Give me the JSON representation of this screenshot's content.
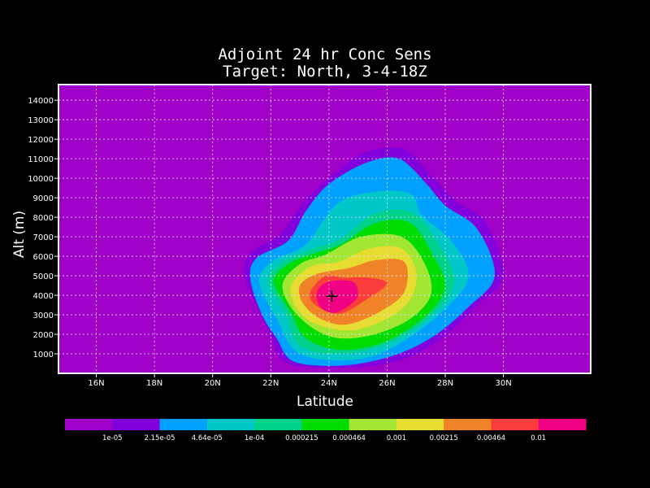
{
  "chart_data": {
    "type": "contour",
    "title": "Adjoint 24 hr Conc Sens",
    "subtitle": "Target: North, 3-4-18Z",
    "xlabel": "Latitude",
    "ylabel": "Alt (m)",
    "xlim": [
      14.7,
      33.0
    ],
    "ylim": [
      0,
      14800
    ],
    "x_ticks": [
      {
        "value": 16,
        "label": "16N"
      },
      {
        "value": 18,
        "label": "18N"
      },
      {
        "value": 20,
        "label": "20N"
      },
      {
        "value": 22,
        "label": "22N"
      },
      {
        "value": 24,
        "label": "24N"
      },
      {
        "value": 26,
        "label": "26N"
      },
      {
        "value": 28,
        "label": "28N"
      },
      {
        "value": 30,
        "label": "30N"
      }
    ],
    "y_ticks": [
      {
        "value": 1000,
        "label": "1000"
      },
      {
        "value": 2000,
        "label": "2000"
      },
      {
        "value": 3000,
        "label": "3000"
      },
      {
        "value": 4000,
        "label": "4000"
      },
      {
        "value": 5000,
        "label": "5000"
      },
      {
        "value": 6000,
        "label": "6000"
      },
      {
        "value": 7000,
        "label": "7000"
      },
      {
        "value": 8000,
        "label": "8000"
      },
      {
        "value": 9000,
        "label": "9000"
      },
      {
        "value": 10000,
        "label": "10000"
      },
      {
        "value": 11000,
        "label": "11000"
      },
      {
        "value": 12000,
        "label": "12000"
      },
      {
        "value": 13000,
        "label": "13000"
      },
      {
        "value": 14000,
        "label": "14000"
      }
    ],
    "grid": true,
    "background_color": "#a000c8",
    "marker": {
      "symbol": "+",
      "x": 24.1,
      "y": 3950
    },
    "levels": [
      {
        "color": "#a000c8",
        "label": "1e-05"
      },
      {
        "color": "#8200dc",
        "label": "2.15e-05"
      },
      {
        "color": "#1e3cff",
        "label": ""
      },
      {
        "color": "#00a0ff",
        "label": "4.64e-05"
      },
      {
        "color": "#00c8c8",
        "label": "1e-04"
      },
      {
        "color": "#00d28c",
        "label": "0.000215"
      },
      {
        "color": "#00dc00",
        "label": "0.000464"
      },
      {
        "color": "#a0e632",
        "label": "0.001"
      },
      {
        "color": "#e6dc32",
        "label": "0.00215"
      },
      {
        "color": "#f08228",
        "label": "0.00464"
      },
      {
        "color": "#fa3c3c",
        "label": "0.01"
      },
      {
        "color": "#f00082",
        "label": ""
      }
    ],
    "colorbar": [
      {
        "color": "#a000c8"
      },
      {
        "color": "#8200dc",
        "label": "1e-05"
      },
      {
        "color": "#00a0ff",
        "label": "2.15e-05"
      },
      {
        "color": "#00c8c8",
        "label": "4.64e-05"
      },
      {
        "color": "#00d28c",
        "label": "1e-04"
      },
      {
        "color": "#00dc00",
        "label": "0.000215"
      },
      {
        "color": "#a0e632",
        "label": "0.000464"
      },
      {
        "color": "#e6dc32",
        "label": "0.001"
      },
      {
        "color": "#f08228",
        "label": "0.00215"
      },
      {
        "color": "#fa3c3c",
        "label": "0.00464"
      },
      {
        "color": "#f00082",
        "label": "0.01"
      }
    ],
    "contours": [
      {
        "color": "#8200dc",
        "points": [
          [
            21.1,
            5000
          ],
          [
            21.3,
            6200
          ],
          [
            22.3,
            7100
          ],
          [
            23.1,
            8700
          ],
          [
            24.0,
            10000
          ],
          [
            25.2,
            11300
          ],
          [
            26.6,
            11500
          ],
          [
            27.6,
            10000
          ],
          [
            28.4,
            8800
          ],
          [
            29.4,
            7700
          ],
          [
            30.0,
            5000
          ],
          [
            29.1,
            3500
          ],
          [
            27.9,
            1800
          ],
          [
            26.5,
            700
          ],
          [
            24.8,
            300
          ],
          [
            22.6,
            500
          ],
          [
            22.0,
            1900
          ],
          [
            21.6,
            3200
          ]
        ]
      },
      {
        "color": "#00a0ff",
        "points": [
          [
            21.3,
            4800
          ],
          [
            21.5,
            5900
          ],
          [
            22.6,
            6800
          ],
          [
            23.2,
            8300
          ],
          [
            24.0,
            9700
          ],
          [
            25.3,
            10800
          ],
          [
            26.4,
            11000
          ],
          [
            27.3,
            9800
          ],
          [
            28.0,
            8600
          ],
          [
            29.1,
            7400
          ],
          [
            29.7,
            5000
          ],
          [
            28.8,
            3400
          ],
          [
            27.6,
            1900
          ],
          [
            26.2,
            900
          ],
          [
            24.5,
            400
          ],
          [
            22.8,
            600
          ],
          [
            22.2,
            1800
          ],
          [
            21.7,
            3000
          ]
        ]
      },
      {
        "color": "#00c8c8",
        "points": [
          [
            21.6,
            4700
          ],
          [
            22.1,
            5800
          ],
          [
            23.2,
            6600
          ],
          [
            24.3,
            8700
          ],
          [
            25.6,
            9300
          ],
          [
            26.8,
            9200
          ],
          [
            27.2,
            8100
          ],
          [
            28.2,
            6800
          ],
          [
            28.8,
            5000
          ],
          [
            28.0,
            3300
          ],
          [
            26.4,
            1500
          ],
          [
            24.9,
            700
          ],
          [
            23.0,
            1000
          ],
          [
            22.2,
            2800
          ]
        ]
      },
      {
        "color": "#00d28c",
        "points": [
          [
            21.9,
            4700
          ],
          [
            22.4,
            5700
          ],
          [
            23.3,
            6300
          ],
          [
            24.4,
            6900
          ],
          [
            25.6,
            8200
          ],
          [
            26.9,
            8200
          ],
          [
            27.9,
            6300
          ],
          [
            28.3,
            4600
          ],
          [
            27.5,
            2900
          ],
          [
            26.0,
            1500
          ],
          [
            24.4,
            1000
          ],
          [
            23.0,
            1400
          ],
          [
            22.5,
            3100
          ]
        ]
      },
      {
        "color": "#00dc00",
        "points": [
          [
            22.1,
            4700
          ],
          [
            22.6,
            5600
          ],
          [
            23.4,
            6100
          ],
          [
            24.4,
            6600
          ],
          [
            25.6,
            7700
          ],
          [
            26.8,
            7700
          ],
          [
            27.6,
            6000
          ],
          [
            28.0,
            4400
          ],
          [
            27.3,
            2900
          ],
          [
            25.9,
            1600
          ],
          [
            24.4,
            1200
          ],
          [
            23.2,
            1800
          ],
          [
            22.7,
            3100
          ]
        ]
      },
      {
        "color": "#a0e632",
        "points": [
          [
            22.4,
            4500
          ],
          [
            23.0,
            5600
          ],
          [
            23.9,
            6100
          ],
          [
            25.1,
            7000
          ],
          [
            26.5,
            7000
          ],
          [
            27.3,
            5600
          ],
          [
            27.5,
            4000
          ],
          [
            26.7,
            2700
          ],
          [
            25.3,
            1900
          ],
          [
            24.0,
            1900
          ],
          [
            22.9,
            3000
          ]
        ]
      },
      {
        "color": "#e6dc32",
        "points": [
          [
            22.7,
            4500
          ],
          [
            23.4,
            5500
          ],
          [
            24.3,
            5700
          ],
          [
            25.4,
            6400
          ],
          [
            26.5,
            6400
          ],
          [
            27.0,
            5200
          ],
          [
            26.8,
            3800
          ],
          [
            26.0,
            2800
          ],
          [
            24.8,
            2200
          ],
          [
            23.6,
            2500
          ],
          [
            22.9,
            3300
          ]
        ]
      },
      {
        "color": "#f08228",
        "points": [
          [
            23.0,
            4500
          ],
          [
            23.6,
            5100
          ],
          [
            24.7,
            5400
          ],
          [
            25.6,
            5800
          ],
          [
            26.6,
            5700
          ],
          [
            26.6,
            4200
          ],
          [
            25.8,
            3200
          ],
          [
            24.6,
            2500
          ],
          [
            23.7,
            2800
          ],
          [
            23.1,
            3600
          ]
        ]
      },
      {
        "color": "#fa3c3c",
        "points": [
          [
            23.4,
            4300
          ],
          [
            23.9,
            5000
          ],
          [
            24.5,
            4900
          ],
          [
            25.4,
            4900
          ],
          [
            26.0,
            4600
          ],
          [
            25.3,
            3800
          ],
          [
            24.5,
            3100
          ],
          [
            23.9,
            3200
          ],
          [
            23.4,
            3700
          ]
        ]
      },
      {
        "color": "#f00082",
        "points": [
          [
            23.6,
            4200
          ],
          [
            24.0,
            4700
          ],
          [
            24.8,
            4700
          ],
          [
            25.0,
            4100
          ],
          [
            24.8,
            3600
          ],
          [
            24.2,
            3100
          ],
          [
            23.7,
            3400
          ]
        ]
      }
    ]
  }
}
